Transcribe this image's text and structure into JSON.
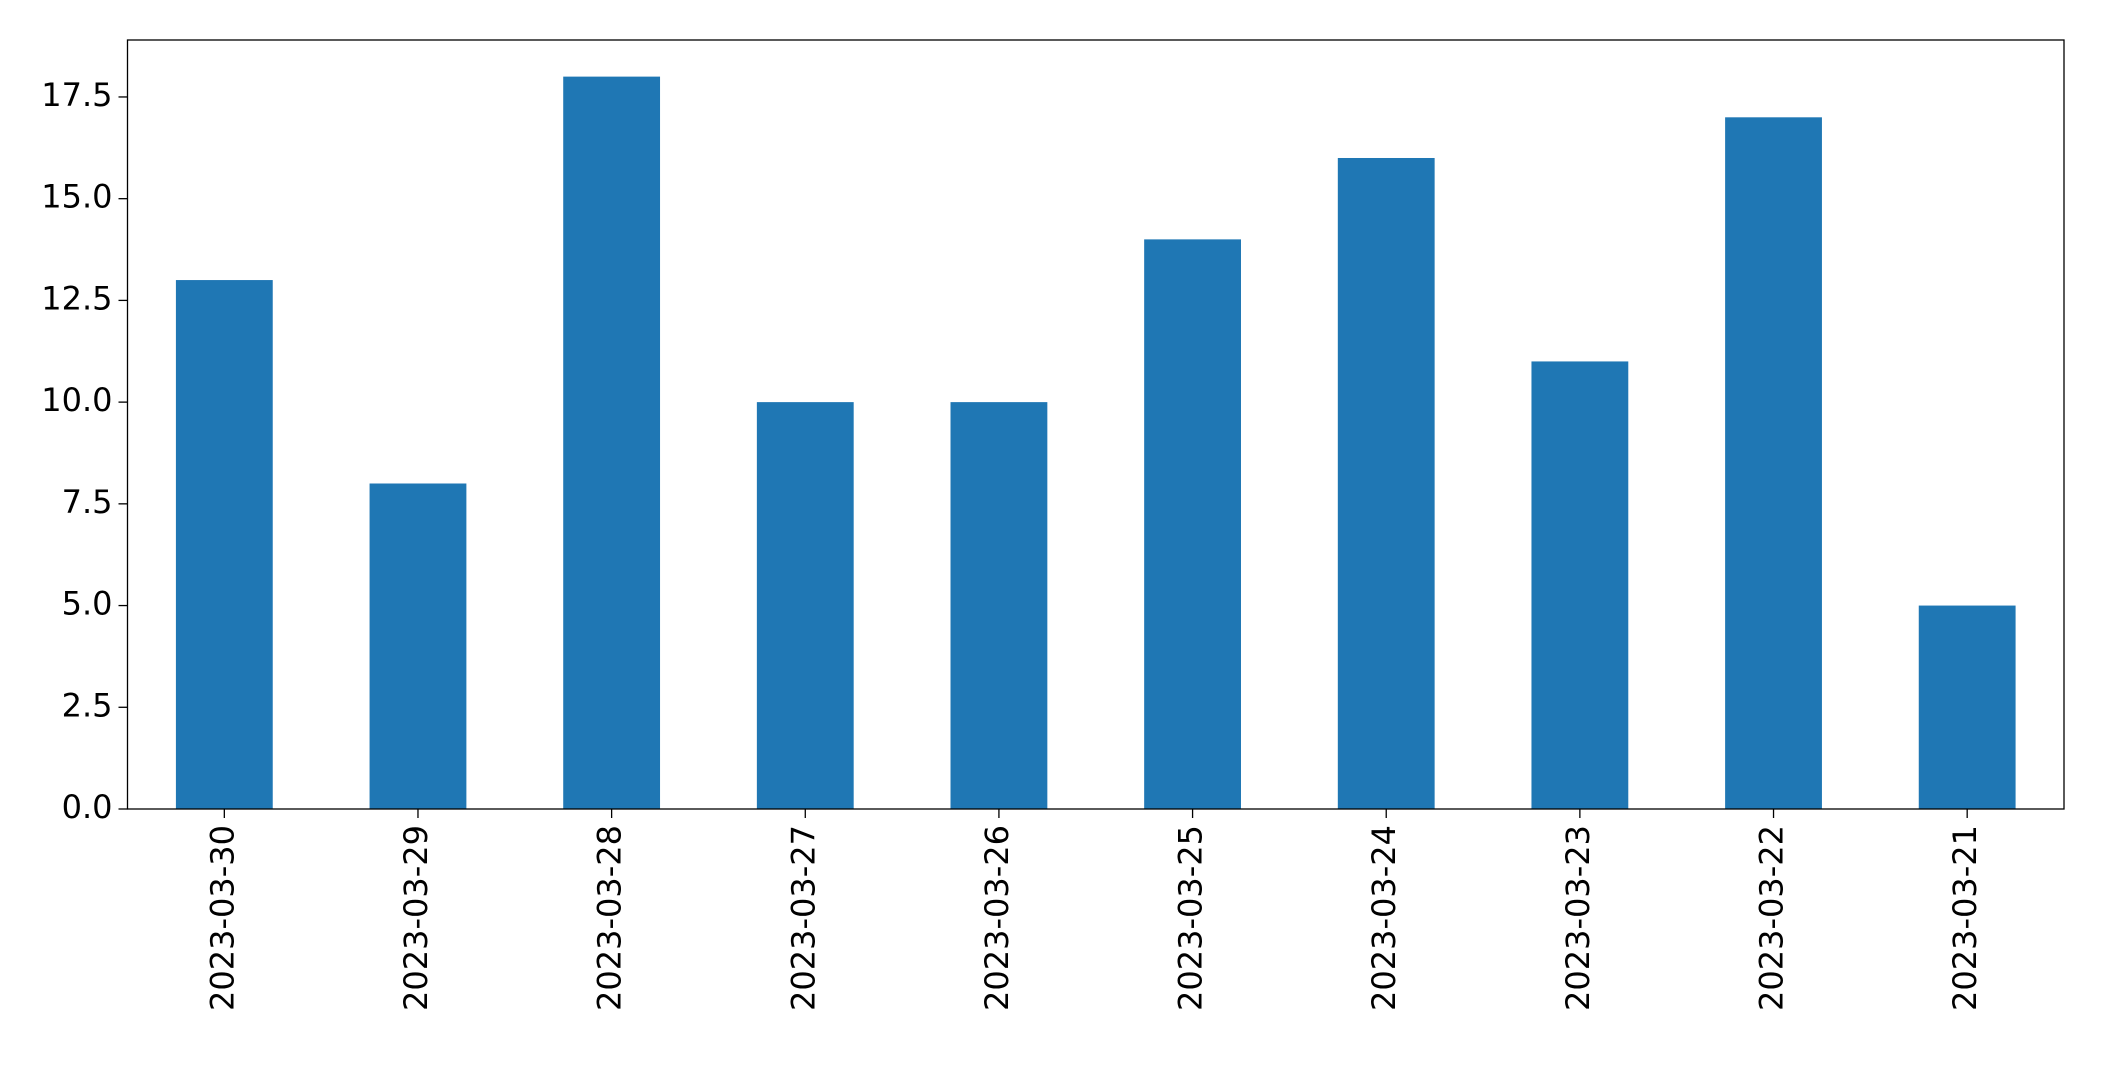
{
  "chart_data": {
    "type": "bar",
    "categories": [
      "2023-03-30",
      "2023-03-29",
      "2023-03-28",
      "2023-03-27",
      "2023-03-26",
      "2023-03-25",
      "2023-03-24",
      "2023-03-23",
      "2023-03-22",
      "2023-03-21"
    ],
    "values": [
      13,
      8,
      18,
      10,
      10,
      14,
      16,
      11,
      17,
      5
    ],
    "color": "#1f77b4",
    "ylim": [
      0,
      18.9
    ],
    "yticks": [
      {
        "value": 0,
        "label": "0.0"
      },
      2.5,
      {
        "value": 5,
        "label": "5.0"
      },
      7.5,
      {
        "value": 10,
        "label": "10.0"
      },
      12.5,
      {
        "value": 15,
        "label": "15.0"
      },
      17.5
    ],
    "grid": false
  }
}
